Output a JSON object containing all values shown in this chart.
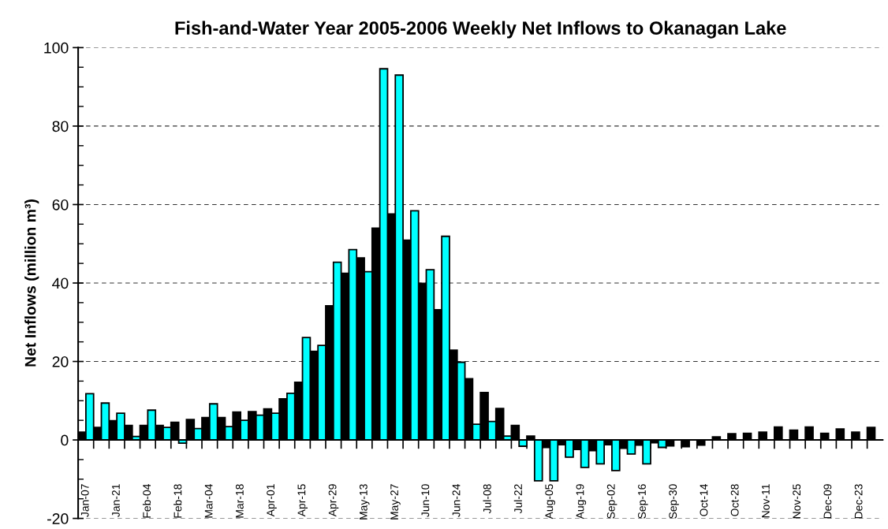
{
  "chart_data": {
    "type": "bar",
    "title": "Fish-and-Water Year 2005-2006 Weekly Net Inflows to Okanagan Lake",
    "ylabel": "Net Inflows (million m³)",
    "categories": [
      "Jan-07",
      null,
      "Jan-21",
      null,
      "Feb-04",
      null,
      "Feb-18",
      null,
      "Mar-04",
      null,
      "Mar-18",
      null,
      "Apr-01",
      null,
      "Apr-15",
      null,
      "Apr-29",
      null,
      "May-13",
      null,
      "May-27",
      null,
      "Jun-10",
      null,
      "Jun-24",
      null,
      "Jul-08",
      null,
      "Jul-22",
      null,
      "Aug-05",
      null,
      "Aug-19",
      null,
      "Sep-02",
      null,
      "Sep-16",
      null,
      "Sep-30",
      null,
      "Oct-14",
      null,
      "Oct-28",
      null,
      "Nov-11",
      null,
      "Nov-25",
      null,
      "Dec-09",
      null,
      "Dec-23",
      null
    ],
    "series": [
      {
        "color": "#000000",
        "values": [
          2.0,
          3.2,
          4.9,
          3.7,
          3.7,
          3.7,
          4.5,
          5.2,
          5.7,
          5.7,
          7.1,
          7.2,
          7.9,
          10.5,
          14.7,
          22.6,
          34.2,
          42.5,
          46.4,
          54.0,
          57.6,
          50.9,
          39.9,
          33.2,
          22.9,
          15.6,
          12.1,
          8.0,
          3.7,
          1.0,
          -1.9,
          -1.2,
          -2.4,
          -2.7,
          -1.2,
          -2.1,
          -1.3,
          -0.7,
          -1.5,
          -1.7,
          -1.3,
          0.8,
          1.6,
          1.7,
          2.0,
          3.3,
          2.5,
          3.3,
          1.7,
          2.8,
          2.0,
          3.2
        ]
      },
      {
        "color": "#00ffff",
        "values": [
          11.8,
          9.4,
          6.8,
          0.9,
          7.6,
          3.2,
          -0.8,
          2.9,
          9.2,
          3.4,
          5.0,
          6.3,
          6.8,
          11.9,
          26.1,
          24.1,
          45.3,
          48.5,
          42.9,
          94.6,
          93.0,
          58.4,
          43.4,
          51.9,
          19.8,
          4.0,
          4.7,
          1.0,
          -1.6,
          -10.4,
          -10.4,
          -4.4,
          -7.0,
          -6.1,
          -7.8,
          -3.6,
          -6.1,
          -1.9,
          null,
          null,
          null,
          null,
          null,
          null,
          null,
          null,
          null,
          null,
          null,
          null,
          null,
          null
        ]
      }
    ],
    "ylim": [
      -20,
      100
    ],
    "yticks": [
      -20,
      0,
      20,
      40,
      60,
      80,
      100
    ],
    "grid": "y",
    "line_style": "dashed"
  }
}
